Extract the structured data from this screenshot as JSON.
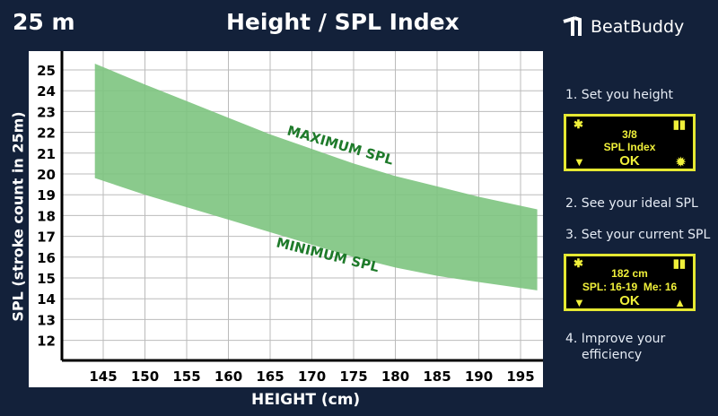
{
  "header": {
    "distance": "25 m",
    "title": "Height / SPL Index",
    "brand": "BeatBuddy"
  },
  "steps": [
    "1. Set you height",
    "2. See your ideal SPL",
    "3. Set your current SPL",
    "4. Improve your",
    "efficiency"
  ],
  "screen1": {
    "line1": "3/8",
    "line2": "SPL Index",
    "ok": "OK"
  },
  "screen2": {
    "line1": "182 cm",
    "line2": "SPL: 16-19  Me: 16",
    "ok": "OK"
  },
  "colors": {
    "band": "#7dc47f",
    "label": "#1e7a2a",
    "screen": "#e5e832"
  },
  "chart_data": {
    "type": "area",
    "title": "Height / SPL Index",
    "xlabel": "HEIGHT (cm)",
    "ylabel": "SPL (stroke count in 25m)",
    "xlim": [
      140,
      197
    ],
    "ylim": [
      11,
      25.5
    ],
    "xticks": [
      145,
      150,
      155,
      160,
      165,
      170,
      175,
      180,
      185,
      190,
      195
    ],
    "yticks": [
      12,
      13,
      14,
      15,
      16,
      17,
      18,
      19,
      20,
      21,
      22,
      23,
      24,
      25
    ],
    "x": [
      144,
      150,
      155,
      160,
      165,
      170,
      175,
      180,
      185,
      190,
      197
    ],
    "series": [
      {
        "name": "MAXIMUM SPL",
        "values": [
          25.3,
          24.3,
          23.5,
          22.7,
          21.9,
          21.2,
          20.5,
          19.9,
          19.4,
          18.9,
          18.3
        ]
      },
      {
        "name": "MINIMUM SPL",
        "values": [
          19.8,
          19.0,
          18.4,
          17.8,
          17.2,
          16.6,
          16.0,
          15.5,
          15.1,
          14.8,
          14.4
        ]
      }
    ],
    "grid": true
  }
}
